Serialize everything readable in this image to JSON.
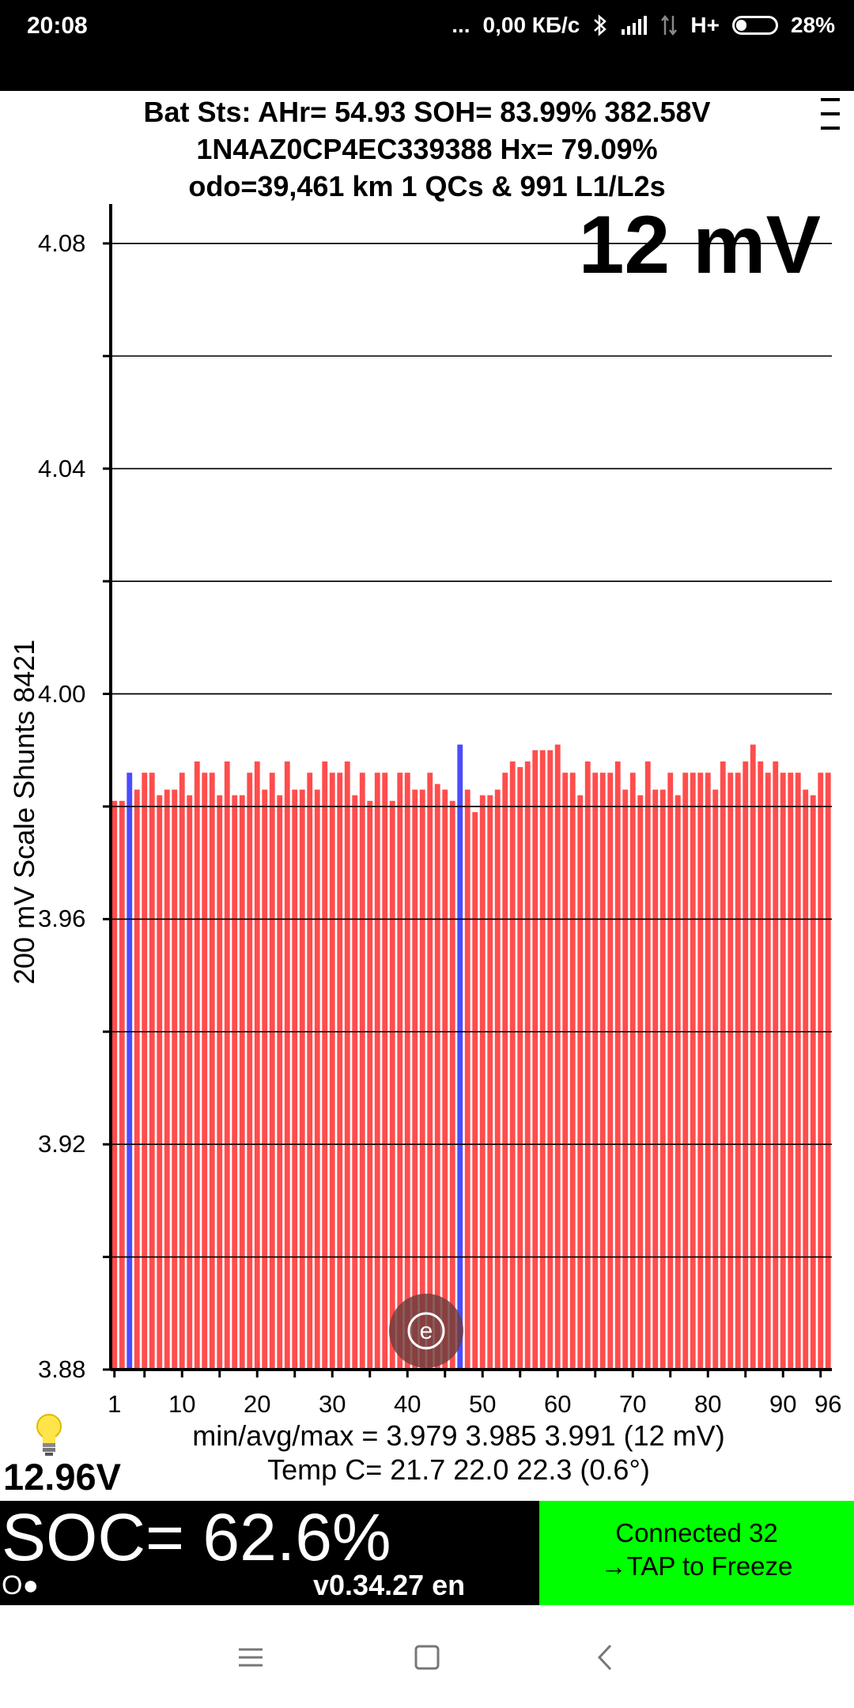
{
  "status_bar": {
    "time": "20:08",
    "dots": "...",
    "speed": "0,00 КБ/с",
    "network": "H+",
    "battery": "28%",
    "battery_level": 0.28
  },
  "header": {
    "line1": "Bat Sts:  AHr= 54.93  SOH= 83.99%   382.58V",
    "line2": "1N4AZ0CP4EC339388   Hx= 79.09%",
    "line3": "odo=39,461 km  1 QCs & 991 L1/L2s"
  },
  "delta_label": "12 mV",
  "side_label": "200 mV Scale   Shunts 8421",
  "chart_data": {
    "type": "bar",
    "y_ticks": [
      "3.88",
      "3.92",
      "3.96",
      "4.00",
      "4.04",
      "4.08"
    ],
    "ylim": [
      3.88,
      4.087
    ],
    "x_ticks": [
      "1",
      "10",
      "20",
      "30",
      "40",
      "50",
      "60",
      "70",
      "80",
      "90",
      "96"
    ],
    "x_tick_positions": [
      1,
      10,
      20,
      30,
      40,
      50,
      60,
      70,
      80,
      90,
      96
    ],
    "categories_count": 96,
    "shunted_cells": [
      3,
      47
    ],
    "bar_color": "#ff4d4d",
    "shunt_color": "#4b4bff",
    "values": [
      3.981,
      3.981,
      3.986,
      3.983,
      3.986,
      3.986,
      3.982,
      3.983,
      3.983,
      3.986,
      3.982,
      3.988,
      3.986,
      3.986,
      3.982,
      3.988,
      3.982,
      3.982,
      3.986,
      3.988,
      3.983,
      3.986,
      3.982,
      3.988,
      3.983,
      3.983,
      3.986,
      3.983,
      3.988,
      3.986,
      3.986,
      3.988,
      3.982,
      3.986,
      3.981,
      3.986,
      3.986,
      3.981,
      3.986,
      3.986,
      3.983,
      3.983,
      3.986,
      3.984,
      3.983,
      3.981,
      3.991,
      3.983,
      3.979,
      3.982,
      3.982,
      3.983,
      3.986,
      3.988,
      3.987,
      3.988,
      3.99,
      3.99,
      3.99,
      3.991,
      3.986,
      3.986,
      3.982,
      3.988,
      3.986,
      3.986,
      3.986,
      3.988,
      3.983,
      3.986,
      3.982,
      3.988,
      3.983,
      3.983,
      3.986,
      3.982,
      3.986,
      3.986,
      3.986,
      3.986,
      3.983,
      3.988,
      3.986,
      3.986,
      3.988,
      3.991,
      3.988,
      3.986,
      3.988,
      3.986,
      3.986,
      3.986,
      3.983,
      3.982,
      3.986,
      3.986
    ]
  },
  "stats": {
    "voltage": "min/avg/max = 3.979 3.985 3.991  (12 mV)",
    "temp": "Temp C= 21.7  22.0  22.3  (0.6°)"
  },
  "aux_voltage": "12.96V",
  "soc": "SOC= 62.6%",
  "mode_indicator": "O●",
  "version": "v0.34.27 en",
  "connection": {
    "line1": "Connected 32",
    "line2": "→TAP to Freeze"
  }
}
